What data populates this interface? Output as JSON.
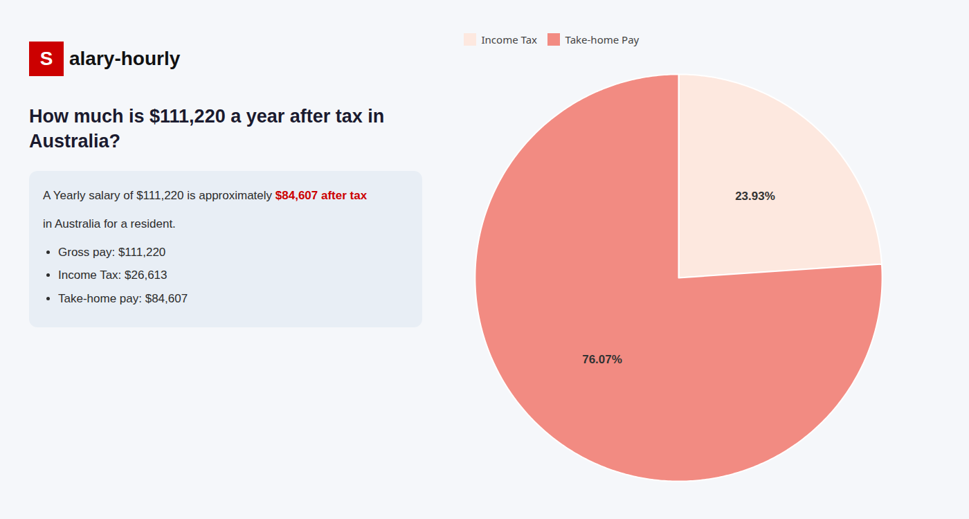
{
  "chart_data": {
    "type": "pie",
    "title": "How much is $111,220 a year after tax in Australia?",
    "annotations": [
      "S",
      "alary-hourly",
      "A Yearly salary of $111,220 is approximately ",
      "$84,607 after tax",
      "in Australia for a resident.",
      "Gross pay: $111,220",
      "Income Tax: $26,613",
      "Take-home pay: $84,607"
    ],
    "categories": [
      "Income Tax",
      "Take-home Pay"
    ],
    "values": [
      23.93,
      76.07
    ],
    "value_labels": [
      "23.93%",
      "76.07%"
    ],
    "data_labels": true,
    "colors": [
      "#fde8df",
      "#f28b82"
    ],
    "legend": "upper left"
  }
}
